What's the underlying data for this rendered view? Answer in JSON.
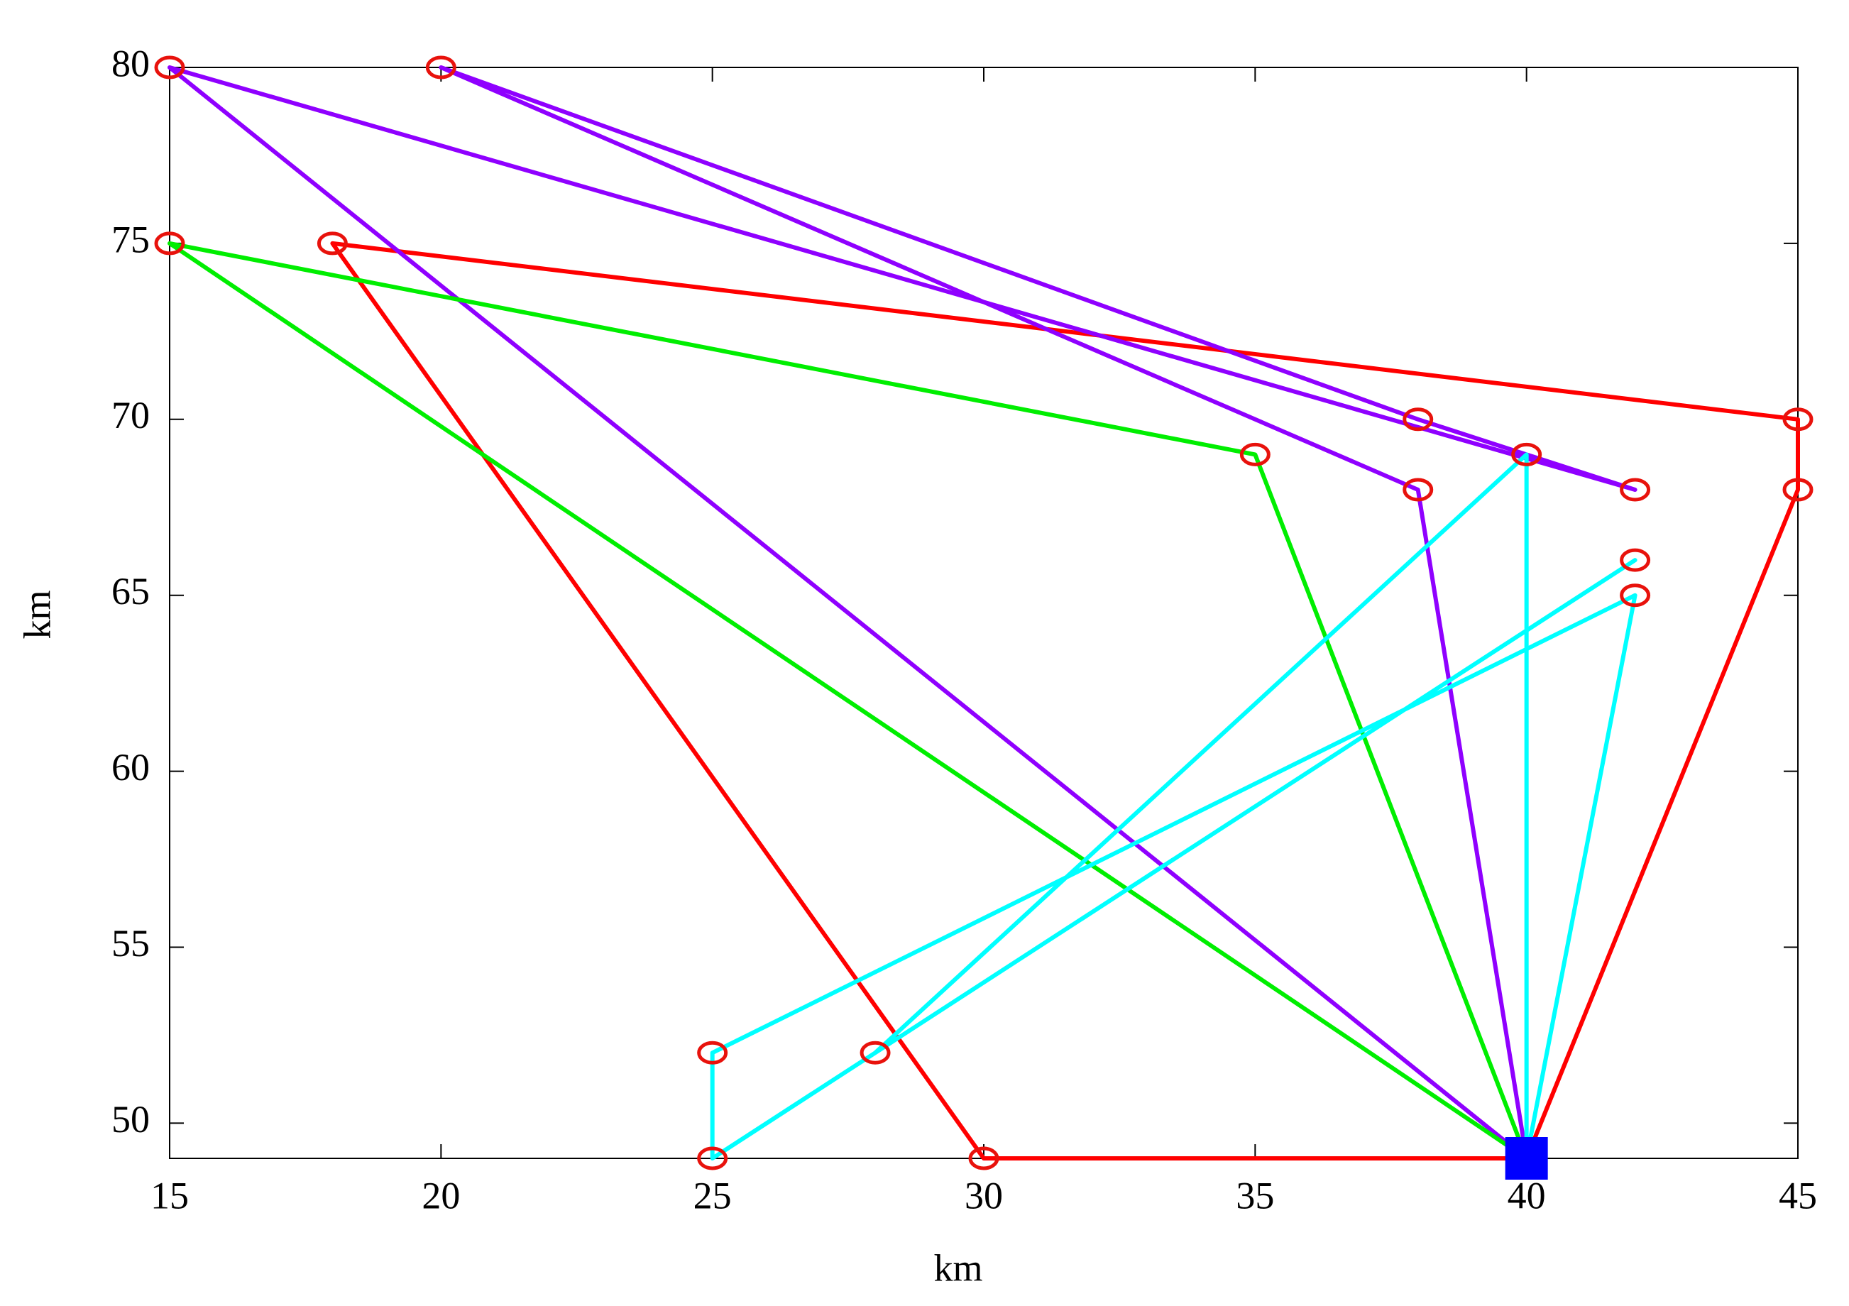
{
  "chart_data": {
    "type": "line",
    "x_label": "km",
    "y_label": "km",
    "xlim": [
      15,
      45
    ],
    "ylim": [
      49,
      80
    ],
    "xticks": [
      15,
      20,
      25,
      30,
      35,
      40,
      45
    ],
    "yticks": [
      50,
      55,
      60,
      65,
      70,
      75,
      80
    ],
    "marker_color": "#e8120c",
    "depot": {
      "x": 40,
      "y": 49,
      "color": "#0000ff"
    },
    "series": [
      {
        "color": "#ff0000",
        "x": [
          40,
          45,
          45,
          18,
          30,
          40
        ],
        "values": [
          49,
          68,
          70,
          75,
          49,
          49
        ]
      },
      {
        "color": "#8f00ff",
        "x": [
          40,
          38,
          20,
          38,
          42,
          15,
          40
        ],
        "values": [
          49,
          68,
          80,
          70,
          68,
          80,
          49
        ]
      },
      {
        "color": "#00ee00",
        "x": [
          40,
          35,
          15,
          40
        ],
        "values": [
          49,
          69,
          75,
          49
        ]
      },
      {
        "color": "#00ffff",
        "x": [
          40,
          40,
          28,
          42,
          25,
          25,
          42,
          40
        ],
        "values": [
          49,
          69,
          52,
          66,
          49,
          52,
          65,
          49
        ]
      }
    ]
  }
}
